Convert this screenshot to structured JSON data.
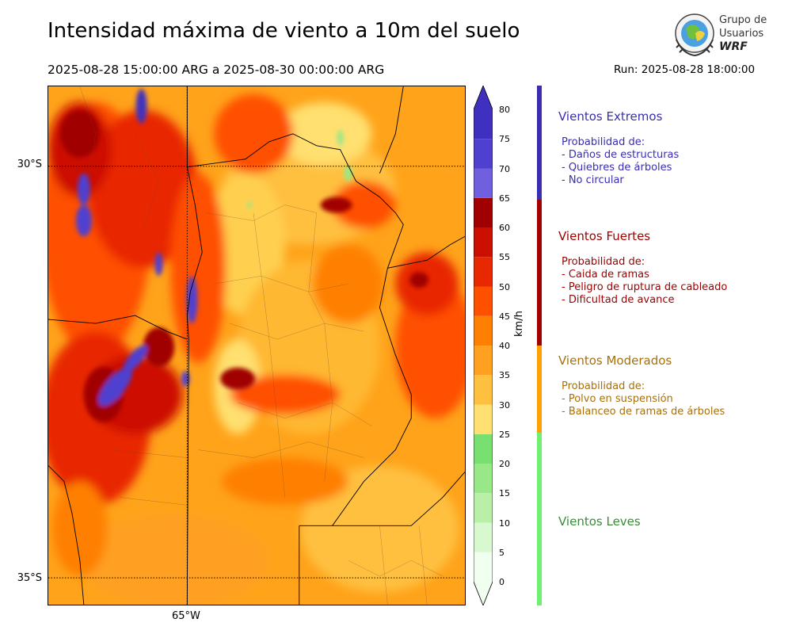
{
  "header": {
    "title": "Intensidad máxima de viento a 10m del suelo",
    "period": "2025-08-28 15:00:00 ARG  a  2025-08-30 00:00:00 ARG",
    "run": "Run: 2025-08-28 18:00:00"
  },
  "logo": {
    "line1": "Grupo de",
    "line2": "Usuarios",
    "line3": "WRF"
  },
  "map": {
    "lat_labels": [
      "30°S",
      "35°S"
    ],
    "lon_labels": [
      "65°W"
    ]
  },
  "colorbar": {
    "unit": "km/h",
    "ticks": [
      "0",
      "5",
      "10",
      "15",
      "20",
      "25",
      "30",
      "35",
      "40",
      "45",
      "50",
      "55",
      "60",
      "65",
      "70",
      "75",
      "80"
    ],
    "colors": [
      "#f0fff0",
      "#d8f8d0",
      "#b8f0a8",
      "#98e888",
      "#78e070",
      "#ffe070",
      "#ffc040",
      "#ffa020",
      "#ff8000",
      "#ff5000",
      "#e82800",
      "#cc1000",
      "#a00000",
      "#7060e0",
      "#5040d0",
      "#4030c0"
    ]
  },
  "legend": [
    {
      "title": "Vientos Extremos",
      "color": "#3a2db0",
      "text_color": "#3a2db0",
      "lines": [
        "Probabilidad de:",
        "- Daños de estructuras",
        "- Quiebres de árboles",
        "- No circular"
      ]
    },
    {
      "title": "Vientos Fuertes",
      "color": "#a00000",
      "text_color": "#9b0000",
      "lines": [
        "Probabilidad de:",
        "- Caida de ramas",
        "- Peligro de ruptura de cableado",
        "- Dificultad de avance"
      ]
    },
    {
      "title": "Vientos Moderados",
      "color": "#ffa000",
      "text_color": "#a8700a",
      "lines": [
        "Probabilidad de:",
        "- Polvo en suspensión",
        "- Balanceo de ramas de árboles"
      ]
    },
    {
      "title": "Vientos Leves",
      "color": "#70f070",
      "text_color": "#3a8a3a",
      "lines": []
    }
  ]
}
